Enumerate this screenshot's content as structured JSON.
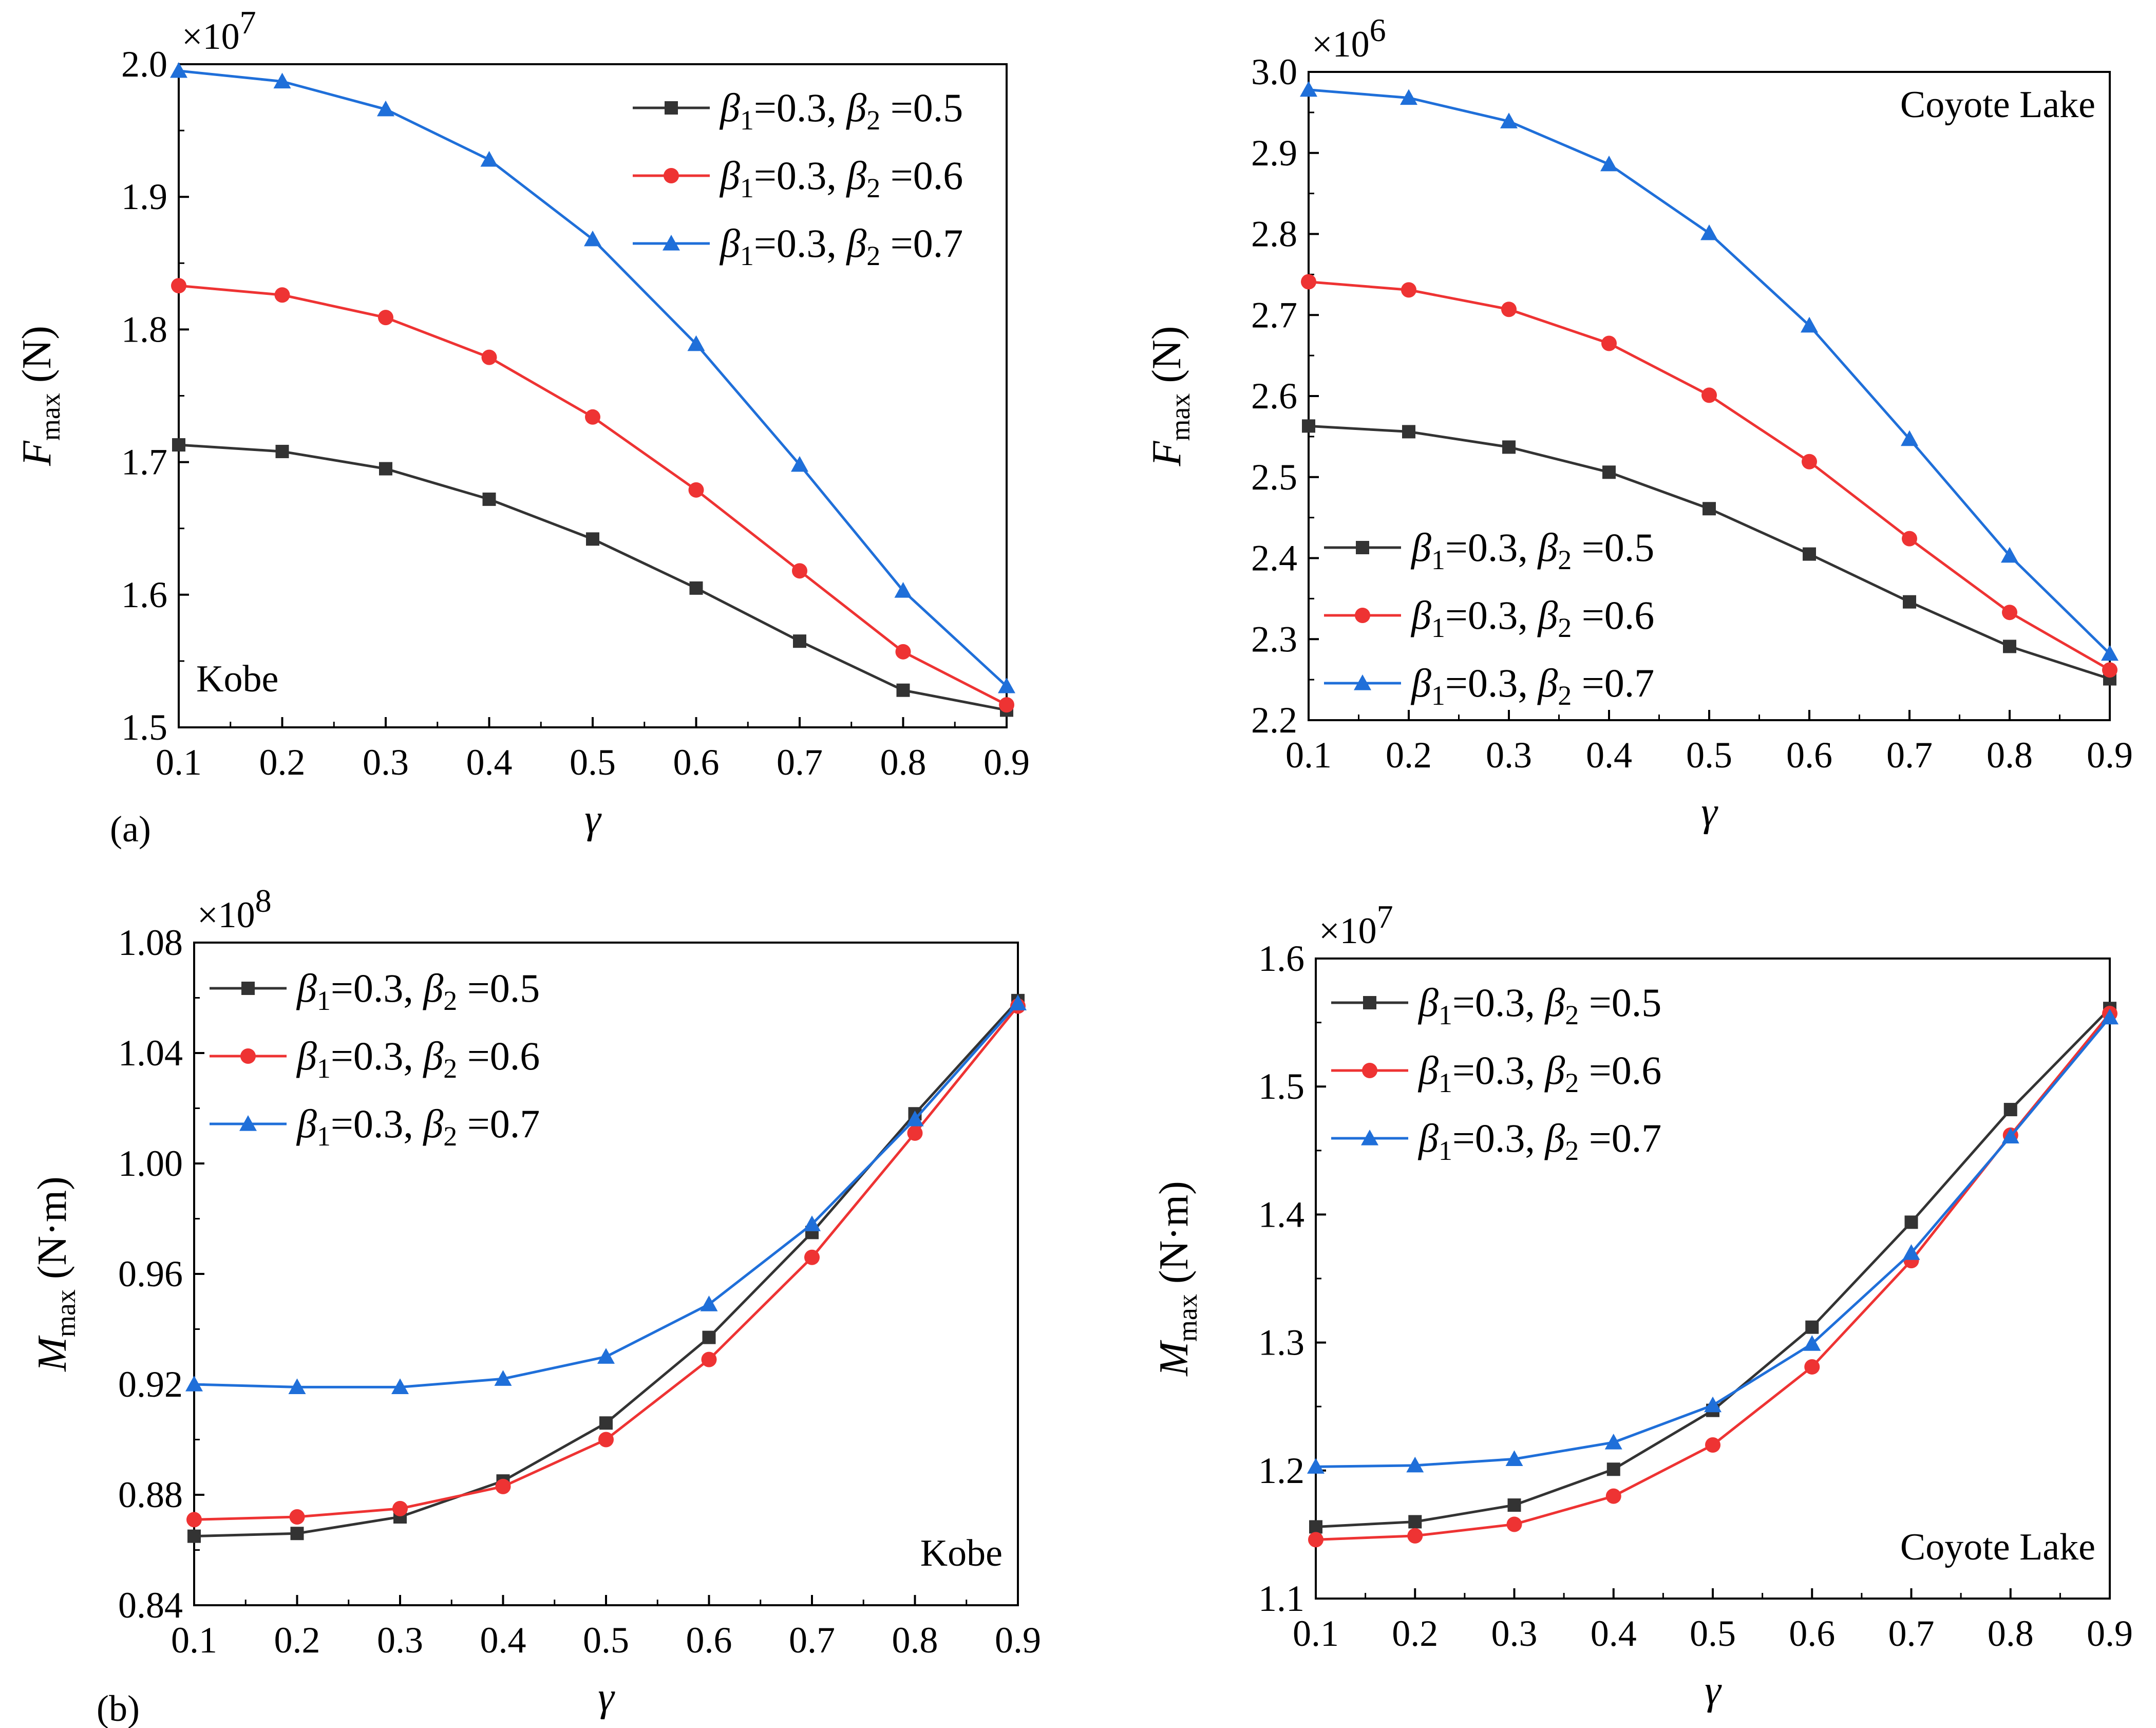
{
  "figure": {
    "panel_labels": [
      "(a)",
      "(b)"
    ],
    "colors": {
      "black_series": "#333333",
      "red_series": "#ee3333",
      "blue_series": "#1f6fd9"
    }
  },
  "chart_data": [
    {
      "id": "a-kobe",
      "type": "line",
      "title": "",
      "xlabel": "γ",
      "ylabel": {
        "main": "F",
        "sub": "max",
        "unit": " (N)"
      },
      "multiplier": {
        "base": "×10",
        "exp": "7"
      },
      "annotation": "Kobe",
      "panel_label": "(a)",
      "x": [
        0.1,
        0.2,
        0.3,
        0.4,
        0.5,
        0.6,
        0.7,
        0.8,
        0.9
      ],
      "xlim": [
        0.1,
        0.9
      ],
      "ylim": [
        1.5,
        2.0
      ],
      "xticks": [
        "0.1",
        "0.2",
        "0.3",
        "0.4",
        "0.5",
        "0.6",
        "0.7",
        "0.8",
        "0.9"
      ],
      "yticks": [
        "1.5",
        "1.6",
        "1.7",
        "1.8",
        "1.9",
        "2.0"
      ],
      "legend_position": "top-right",
      "series": [
        {
          "name": "β1=0.3, β2 =0.5",
          "marker": "square",
          "color": "#333333",
          "values": [
            1.713,
            1.708,
            1.695,
            1.672,
            1.642,
            1.605,
            1.565,
            1.528,
            1.513
          ]
        },
        {
          "name": "β1=0.3, β2 =0.6",
          "marker": "circle",
          "color": "#ee3333",
          "values": [
            1.833,
            1.826,
            1.809,
            1.779,
            1.734,
            1.679,
            1.618,
            1.557,
            1.517
          ]
        },
        {
          "name": "β1=0.3, β2 =0.7",
          "marker": "triangle",
          "color": "#1f6fd9",
          "values": [
            1.995,
            1.987,
            1.966,
            1.928,
            1.868,
            1.789,
            1.698,
            1.603,
            1.531
          ]
        }
      ]
    },
    {
      "id": "a-coyote",
      "type": "line",
      "title": "",
      "xlabel": "γ",
      "ylabel": {
        "main": "F",
        "sub": "max",
        "unit": " (N)"
      },
      "multiplier": {
        "base": "×10",
        "exp": "6"
      },
      "annotation": "Coyote Lake",
      "panel_label": "",
      "x": [
        0.1,
        0.2,
        0.3,
        0.4,
        0.5,
        0.6,
        0.7,
        0.8,
        0.9
      ],
      "xlim": [
        0.1,
        0.9
      ],
      "ylim": [
        2.2,
        3.0
      ],
      "xticks": [
        "0.1",
        "0.2",
        "0.3",
        "0.4",
        "0.5",
        "0.6",
        "0.7",
        "0.8",
        "0.9"
      ],
      "yticks": [
        "2.2",
        "2.3",
        "2.4",
        "2.5",
        "2.6",
        "2.7",
        "2.8",
        "2.9",
        "3.0"
      ],
      "legend_position": "bottom-left",
      "series": [
        {
          "name": "β1=0.3, β2 =0.5",
          "marker": "square",
          "color": "#333333",
          "values": [
            2.563,
            2.556,
            2.537,
            2.506,
            2.461,
            2.405,
            2.346,
            2.291,
            2.251
          ]
        },
        {
          "name": "β1=0.3, β2 =0.6",
          "marker": "circle",
          "color": "#ee3333",
          "values": [
            2.741,
            2.731,
            2.707,
            2.665,
            2.601,
            2.519,
            2.424,
            2.333,
            2.262
          ]
        },
        {
          "name": "β1=0.3, β2 =0.7",
          "marker": "triangle",
          "color": "#1f6fd9",
          "values": [
            2.978,
            2.968,
            2.939,
            2.886,
            2.801,
            2.687,
            2.547,
            2.403,
            2.282
          ]
        }
      ]
    },
    {
      "id": "b-kobe",
      "type": "line",
      "title": "",
      "xlabel": "γ",
      "ylabel": {
        "main": "M",
        "sub": "max",
        "unit": " (N·m)"
      },
      "multiplier": {
        "base": "×10",
        "exp": "8"
      },
      "annotation": "Kobe",
      "panel_label": "(b)",
      "x": [
        0.1,
        0.2,
        0.3,
        0.4,
        0.5,
        0.6,
        0.7,
        0.8,
        0.9
      ],
      "xlim": [
        0.1,
        0.9
      ],
      "ylim": [
        0.84,
        1.08
      ],
      "xticks": [
        "0.1",
        "0.2",
        "0.3",
        "0.4",
        "0.5",
        "0.6",
        "0.7",
        "0.8",
        "0.9"
      ],
      "yticks": [
        "0.84",
        "0.88",
        "0.92",
        "0.96",
        "1.00",
        "1.04",
        "1.08"
      ],
      "legend_position": "top-left",
      "series": [
        {
          "name": "β1=0.3, β2 =0.5",
          "marker": "square",
          "color": "#333333",
          "values": [
            0.865,
            0.866,
            0.872,
            0.885,
            0.906,
            0.937,
            0.975,
            1.018,
            1.059
          ]
        },
        {
          "name": "β1=0.3, β2 =0.6",
          "marker": "circle",
          "color": "#ee3333",
          "values": [
            0.871,
            0.872,
            0.875,
            0.883,
            0.9,
            0.929,
            0.966,
            1.011,
            1.057
          ]
        },
        {
          "name": "β1=0.3, β2 =0.7",
          "marker": "triangle",
          "color": "#1f6fd9",
          "values": [
            0.92,
            0.919,
            0.919,
            0.922,
            0.93,
            0.949,
            0.978,
            1.016,
            1.058
          ]
        }
      ]
    },
    {
      "id": "b-coyote",
      "type": "line",
      "title": "",
      "xlabel": "γ",
      "ylabel": {
        "main": "M",
        "sub": "max",
        "unit": " (N·m)"
      },
      "multiplier": {
        "base": "×10",
        "exp": "7"
      },
      "annotation": "Coyote Lake",
      "panel_label": "",
      "x": [
        0.1,
        0.2,
        0.3,
        0.4,
        0.5,
        0.6,
        0.7,
        0.8,
        0.9
      ],
      "xlim": [
        0.1,
        0.9
      ],
      "ylim": [
        1.1,
        1.6
      ],
      "xticks": [
        "0.1",
        "0.2",
        "0.3",
        "0.4",
        "0.5",
        "0.6",
        "0.7",
        "0.8",
        "0.9"
      ],
      "yticks": [
        "1.1",
        "1.2",
        "1.3",
        "1.4",
        "1.5",
        "1.6"
      ],
      "legend_position": "top-left",
      "series": [
        {
          "name": "β1=0.3, β2 =0.5",
          "marker": "square",
          "color": "#333333",
          "values": [
            1.156,
            1.16,
            1.173,
            1.201,
            1.247,
            1.312,
            1.394,
            1.482,
            1.561
          ]
        },
        {
          "name": "β1=0.3, β2 =0.6",
          "marker": "circle",
          "color": "#ee3333",
          "values": [
            1.146,
            1.149,
            1.158,
            1.18,
            1.22,
            1.281,
            1.364,
            1.462,
            1.557
          ]
        },
        {
          "name": "β1=0.3, β2 =0.7",
          "marker": "triangle",
          "color": "#1f6fd9",
          "values": [
            1.203,
            1.204,
            1.209,
            1.222,
            1.251,
            1.299,
            1.37,
            1.461,
            1.554
          ]
        }
      ]
    }
  ]
}
